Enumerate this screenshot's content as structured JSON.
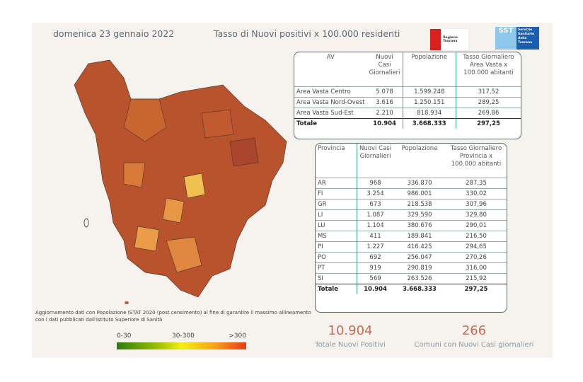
{
  "header": {
    "date": "domenica 23 gennaio 2022",
    "title": "Tasso di Nuovi positivi x 100.000 residenti"
  },
  "logos": {
    "regione": "Regione Toscana",
    "sst": "SST",
    "sst_text": "Servizio Sanitario della Toscana"
  },
  "av_table": {
    "headers": [
      "AV",
      "Nuovi Casi Giornalieri",
      "Popolazione",
      "Tasso Giornaliero Area Vasta x 100.000 abitanti"
    ],
    "rows": [
      [
        "Area Vasta Centro",
        "5.078",
        "1.599.248",
        "317,52"
      ],
      [
        "Area Vasta Nord-Ovest",
        "3.616",
        "1.250.151",
        "289,25"
      ],
      [
        "Area Vasta Sud-Est",
        "2.210",
        "818.934",
        "269,86"
      ]
    ],
    "total": [
      "Totale",
      "10.904",
      "3.668.333",
      "297,25"
    ]
  },
  "prov_table": {
    "headers": [
      "Provincia",
      "Nuovi Casi Giornalieri",
      "Popolazione",
      "Tasso Giornaliero Provincia x 100.000 abitanti"
    ],
    "rows": [
      [
        "AR",
        "968",
        "336.870",
        "287,35"
      ],
      [
        "FI",
        "3.254",
        "986.001",
        "330,02"
      ],
      [
        "GR",
        "673",
        "218.538",
        "307,96"
      ],
      [
        "LI",
        "1.087",
        "329.590",
        "329,80"
      ],
      [
        "LU",
        "1.104",
        "380.676",
        "290,01"
      ],
      [
        "MS",
        "411",
        "189.841",
        "216,50"
      ],
      [
        "PI",
        "1.227",
        "416.425",
        "294,65"
      ],
      [
        "PO",
        "692",
        "256.047",
        "270,26"
      ],
      [
        "PT",
        "919",
        "290.819",
        "316,00"
      ],
      [
        "SI",
        "569",
        "263.526",
        "215,92"
      ]
    ],
    "total": [
      "Totale",
      "10.904",
      "3.668.333",
      "297,25"
    ]
  },
  "note": "Aggiornamento dati con Popolazione ISTAT 2020 (post censimento) al fine di garantire il massimo allineamento con i dati pubblicati dall'Istituto Superiore di Sanità",
  "legend": {
    "low": "0-30",
    "mid": "30-300",
    "high": ">300",
    "colors": [
      "#2a7a12",
      "#f5ef10",
      "#ea3a17"
    ]
  },
  "kpis": [
    {
      "value": "10.904",
      "label": "Totale Nuovi Positivi"
    },
    {
      "value": "266",
      "label": "Comuni con Nuovi Casi giornalieri"
    }
  ]
}
